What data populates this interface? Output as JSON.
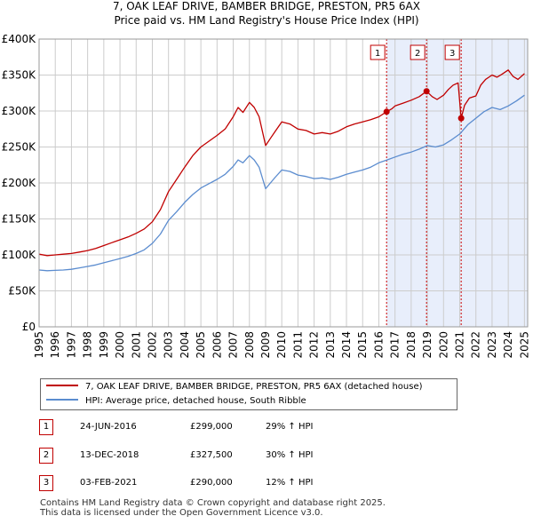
{
  "title_line1": "7, OAK LEAF DRIVE, BAMBER BRIDGE, PRESTON, PR5 6AX",
  "title_line2": "Price paid vs. HM Land Registry's House Price Index (HPI)",
  "colors": {
    "property": "#c00000",
    "hpi": "#5b8ccf",
    "shade": "#e8eefb",
    "grid": "#cccccc",
    "marker_line": "#cc0000"
  },
  "chart_data": {
    "type": "line",
    "xlabel": "",
    "ylabel": "",
    "xlim": [
      1995.0,
      2025.2
    ],
    "ylim": [
      0,
      400000
    ],
    "y_ticks": [
      {
        "value": 0,
        "label": "£0"
      },
      {
        "value": 50000,
        "label": "£50K"
      },
      {
        "value": 100000,
        "label": "£100K"
      },
      {
        "value": 150000,
        "label": "£150K"
      },
      {
        "value": 200000,
        "label": "£200K"
      },
      {
        "value": 250000,
        "label": "£250K"
      },
      {
        "value": 300000,
        "label": "£300K"
      },
      {
        "value": 350000,
        "label": "£350K"
      },
      {
        "value": 400000,
        "label": "£400K"
      }
    ],
    "x_ticks": [
      "1995",
      "1996",
      "1997",
      "1998",
      "1999",
      "2000",
      "2001",
      "2002",
      "2003",
      "2004",
      "2005",
      "2006",
      "2007",
      "2008",
      "2009",
      "2010",
      "2011",
      "2012",
      "2013",
      "2014",
      "2015",
      "2016",
      "2017",
      "2018",
      "2019",
      "2020",
      "2021",
      "2022",
      "2023",
      "2024",
      "2025"
    ],
    "grid": true,
    "series": [
      {
        "name": "7, OAK LEAF DRIVE, BAMBER BRIDGE, PRESTON, PR5 6AX (detached house)",
        "x": [
          1995,
          1995.5,
          1996,
          1996.5,
          1997,
          1997.5,
          1998,
          1998.5,
          1999,
          1999.5,
          2000,
          2000.5,
          2001,
          2001.5,
          2002,
          2002.5,
          2003,
          2003.5,
          2004,
          2004.5,
          2005,
          2005.5,
          2006,
          2006.5,
          2007,
          2007.3,
          2007.6,
          2008,
          2008.3,
          2008.6,
          2009,
          2009.3,
          2009.6,
          2010,
          2010.5,
          2011,
          2011.5,
          2012,
          2012.5,
          2013,
          2013.5,
          2014,
          2014.5,
          2015,
          2015.5,
          2016,
          2016.48,
          2016.8,
          2017,
          2017.5,
          2018,
          2018.5,
          2018.95,
          2019.3,
          2019.6,
          2020,
          2020.3,
          2020.6,
          2020.9,
          2021.09,
          2021.3,
          2021.6,
          2022,
          2022.3,
          2022.6,
          2023,
          2023.3,
          2023.6,
          2024,
          2024.3,
          2024.6,
          2025
        ],
        "values": [
          101000,
          99000,
          100000,
          101000,
          102000,
          104000,
          106000,
          109000,
          113000,
          117000,
          121000,
          125000,
          130000,
          136000,
          146000,
          163000,
          188000,
          205000,
          222000,
          238000,
          250000,
          258000,
          266000,
          275000,
          292000,
          305000,
          298000,
          312000,
          305000,
          292000,
          252000,
          262000,
          272000,
          285000,
          282000,
          275000,
          273000,
          268000,
          270000,
          268000,
          272000,
          278000,
          282000,
          285000,
          288000,
          292000,
          299000,
          303000,
          307000,
          311000,
          315000,
          320000,
          327500,
          320000,
          316000,
          322000,
          330000,
          336000,
          339000,
          290000,
          308000,
          318000,
          321000,
          336000,
          344000,
          350000,
          347000,
          351000,
          357000,
          348000,
          344000,
          352000
        ]
      },
      {
        "name": "HPI: Average price, detached house, South Ribble",
        "x": [
          1995,
          1995.5,
          1996,
          1996.5,
          1997,
          1997.5,
          1998,
          1998.5,
          1999,
          1999.5,
          2000,
          2000.5,
          2001,
          2001.5,
          2002,
          2002.5,
          2003,
          2003.5,
          2004,
          2004.5,
          2005,
          2005.5,
          2006,
          2006.5,
          2007,
          2007.3,
          2007.6,
          2008,
          2008.3,
          2008.6,
          2009,
          2009.3,
          2009.6,
          2010,
          2010.5,
          2011,
          2011.5,
          2012,
          2012.5,
          2013,
          2013.5,
          2014,
          2014.5,
          2015,
          2015.5,
          2016,
          2016.5,
          2017,
          2017.5,
          2018,
          2018.5,
          2019,
          2019.5,
          2020,
          2020.5,
          2021,
          2021.5,
          2022,
          2022.5,
          2023,
          2023.5,
          2024,
          2024.5,
          2025
        ],
        "values": [
          79000,
          78000,
          78500,
          79000,
          80000,
          82000,
          84000,
          86000,
          89000,
          92000,
          95000,
          98000,
          102000,
          107000,
          116000,
          129000,
          148000,
          160000,
          173000,
          184000,
          193000,
          199000,
          205000,
          212000,
          223000,
          232000,
          228000,
          238000,
          232000,
          222000,
          192000,
          200000,
          208000,
          218000,
          216000,
          211000,
          209000,
          206000,
          207000,
          205000,
          208000,
          212000,
          215000,
          218000,
          222000,
          228000,
          232000,
          236000,
          240000,
          243000,
          247000,
          252000,
          250000,
          253000,
          260000,
          268000,
          281000,
          290000,
          299000,
          305000,
          302000,
          307000,
          314000,
          322000
        ]
      }
    ],
    "sales": [
      {
        "label": "1",
        "x": 2016.48,
        "price": 299000
      },
      {
        "label": "2",
        "x": 2018.95,
        "price": 327500
      },
      {
        "label": "3",
        "x": 2021.09,
        "price": 290000
      }
    ]
  },
  "legend": {
    "property_label": "7, OAK LEAF DRIVE, BAMBER BRIDGE, PRESTON, PR5 6AX (detached house)",
    "hpi_label": "HPI: Average price, detached house, South Ribble"
  },
  "transactions": [
    {
      "num": "1",
      "date": "24-JUN-2016",
      "price": "£299,000",
      "hpi": "29% ↑ HPI"
    },
    {
      "num": "2",
      "date": "13-DEC-2018",
      "price": "£327,500",
      "hpi": "30% ↑ HPI"
    },
    {
      "num": "3",
      "date": "03-FEB-2021",
      "price": "£290,000",
      "hpi": "12% ↑ HPI"
    }
  ],
  "footer": {
    "line1": "Contains HM Land Registry data © Crown copyright and database right 2025.",
    "line2": "This data is licensed under the Open Government Licence v3.0."
  }
}
